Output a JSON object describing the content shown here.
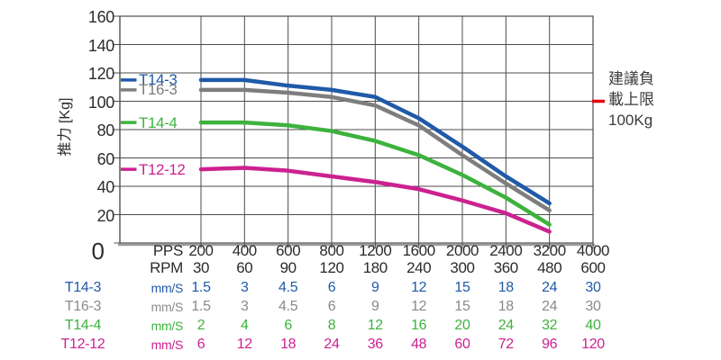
{
  "chart_data": {
    "type": "line",
    "ylabel": "推力 [Kg]",
    "ylim": [
      0,
      160
    ],
    "ytick_step": 20,
    "ytick_labels": [
      "160",
      "140",
      "120",
      "100",
      "80",
      "60",
      "40",
      "20"
    ],
    "origin_label": "0",
    "grid": true,
    "legend_position": "inside-left",
    "x_data": [
      200,
      400,
      600,
      800,
      1200,
      1600,
      2000,
      2400,
      3200
    ],
    "x_axis": {
      "pps_label": "PPS",
      "rpm_label": "RPM",
      "pps_values": [
        "200",
        "400",
        "600",
        "800",
        "1200",
        "1600",
        "2000",
        "2400",
        "3200",
        "4000"
      ],
      "rpm_values": [
        "30",
        "60",
        "90",
        "120",
        "180",
        "240",
        "300",
        "360",
        "480",
        "600"
      ]
    },
    "series": [
      {
        "name": "T14-3",
        "color": "#1f5aa8",
        "values": [
          115,
          115,
          111,
          108,
          103,
          88,
          68,
          47,
          28
        ]
      },
      {
        "name": "T16-3",
        "color": "#7e7e7e",
        "values": [
          108,
          108,
          106,
          103,
          97,
          83,
          62,
          42,
          23
        ]
      },
      {
        "name": "T14-4",
        "color": "#3db23d",
        "values": [
          85,
          85,
          83,
          79,
          72,
          62,
          48,
          32,
          13
        ]
      },
      {
        "name": "T12-12",
        "color": "#cc2190",
        "values": [
          52,
          53,
          51,
          47,
          43,
          38,
          30,
          21,
          8
        ]
      }
    ],
    "annotation": {
      "lines": [
        "建議負",
        "載上限",
        "100Kg"
      ],
      "value": 100,
      "color": "#e60012"
    },
    "colors": {
      "grid": "#4c4c4c",
      "axis_shadow": "#9b9b9b",
      "text": "#2d2d2d"
    }
  },
  "speed_table": {
    "unit_label": "mm/S",
    "rows": [
      {
        "name": "T14-3",
        "color": "#1f5aa8",
        "values": [
          "1.5",
          "3",
          "4.5",
          "6",
          "9",
          "12",
          "15",
          "18",
          "24",
          "30"
        ]
      },
      {
        "name": "T16-3",
        "color": "#8a8a8a",
        "values": [
          "1.5",
          "3",
          "4.5",
          "6",
          "9",
          "12",
          "15",
          "18",
          "24",
          "30"
        ]
      },
      {
        "name": "T14-4",
        "color": "#3db23d",
        "values": [
          "2",
          "4",
          "6",
          "8",
          "12",
          "16",
          "20",
          "24",
          "32",
          "40"
        ]
      },
      {
        "name": "T12-12",
        "color": "#cc2190",
        "values": [
          "6",
          "12",
          "18",
          "24",
          "36",
          "48",
          "60",
          "72",
          "96",
          "120"
        ]
      }
    ]
  }
}
